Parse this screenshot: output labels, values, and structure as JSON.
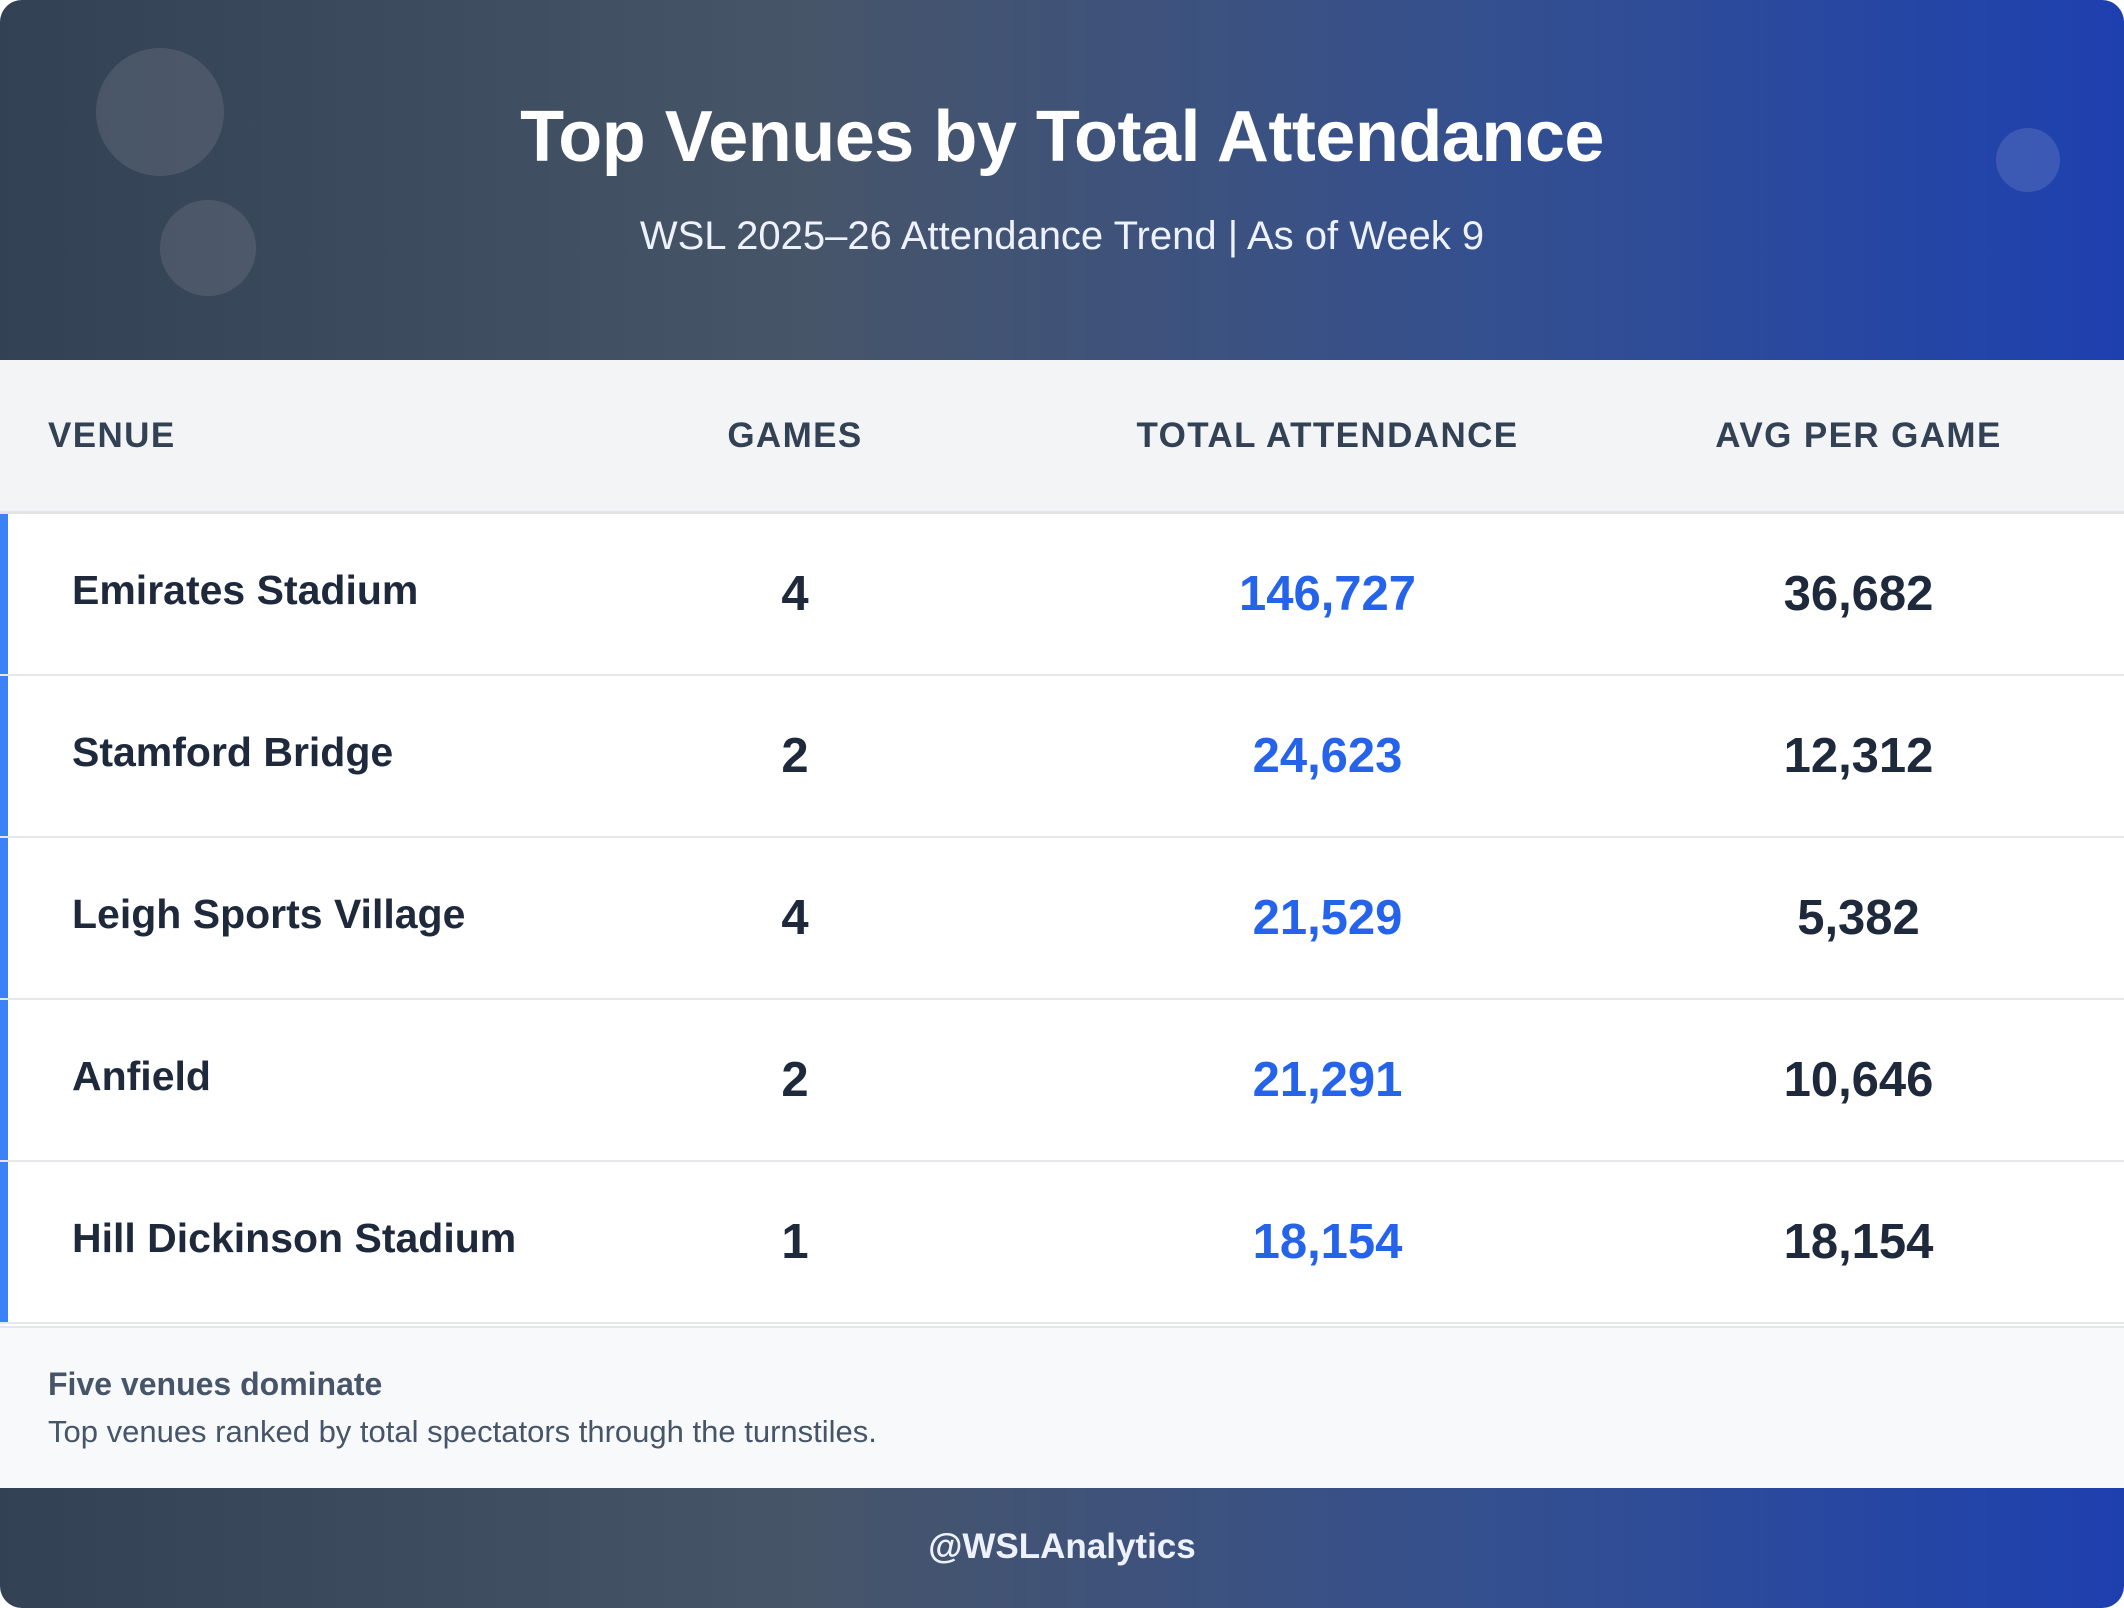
{
  "header": {
    "title": "Top Venues by Total Attendance",
    "subtitle": "WSL 2025–26 Attendance Trend | As of Week 9"
  },
  "chart_data": {
    "type": "table",
    "title": "Top Venues by Total Attendance",
    "subtitle": "WSL 2025–26 Attendance Trend | As of Week 9",
    "columns": [
      "VENUE",
      "GAMES",
      "TOTAL ATTENDANCE",
      "AVG PER GAME"
    ],
    "rows": [
      {
        "venue": "Emirates Stadium",
        "games": "4",
        "total": "146,727",
        "avg": "36,682"
      },
      {
        "venue": "Stamford Bridge",
        "games": "2",
        "total": "24,623",
        "avg": "12,312"
      },
      {
        "venue": "Leigh Sports Village",
        "games": "4",
        "total": "21,529",
        "avg": "5,382"
      },
      {
        "venue": "Anfield",
        "games": "2",
        "total": "21,291",
        "avg": "10,646"
      },
      {
        "venue": "Hill Dickinson Stadium",
        "games": "1",
        "total": "18,154",
        "avg": "18,154"
      }
    ]
  },
  "notes": {
    "title": "Five venues dominate",
    "text": "Top venues ranked by total spectators through the turnstiles."
  },
  "footer": {
    "handle": "@WSLAnalytics"
  },
  "colors": {
    "accent": "#3b82f6",
    "total_value": "#2563eb",
    "text_dark": "#1e293b"
  }
}
